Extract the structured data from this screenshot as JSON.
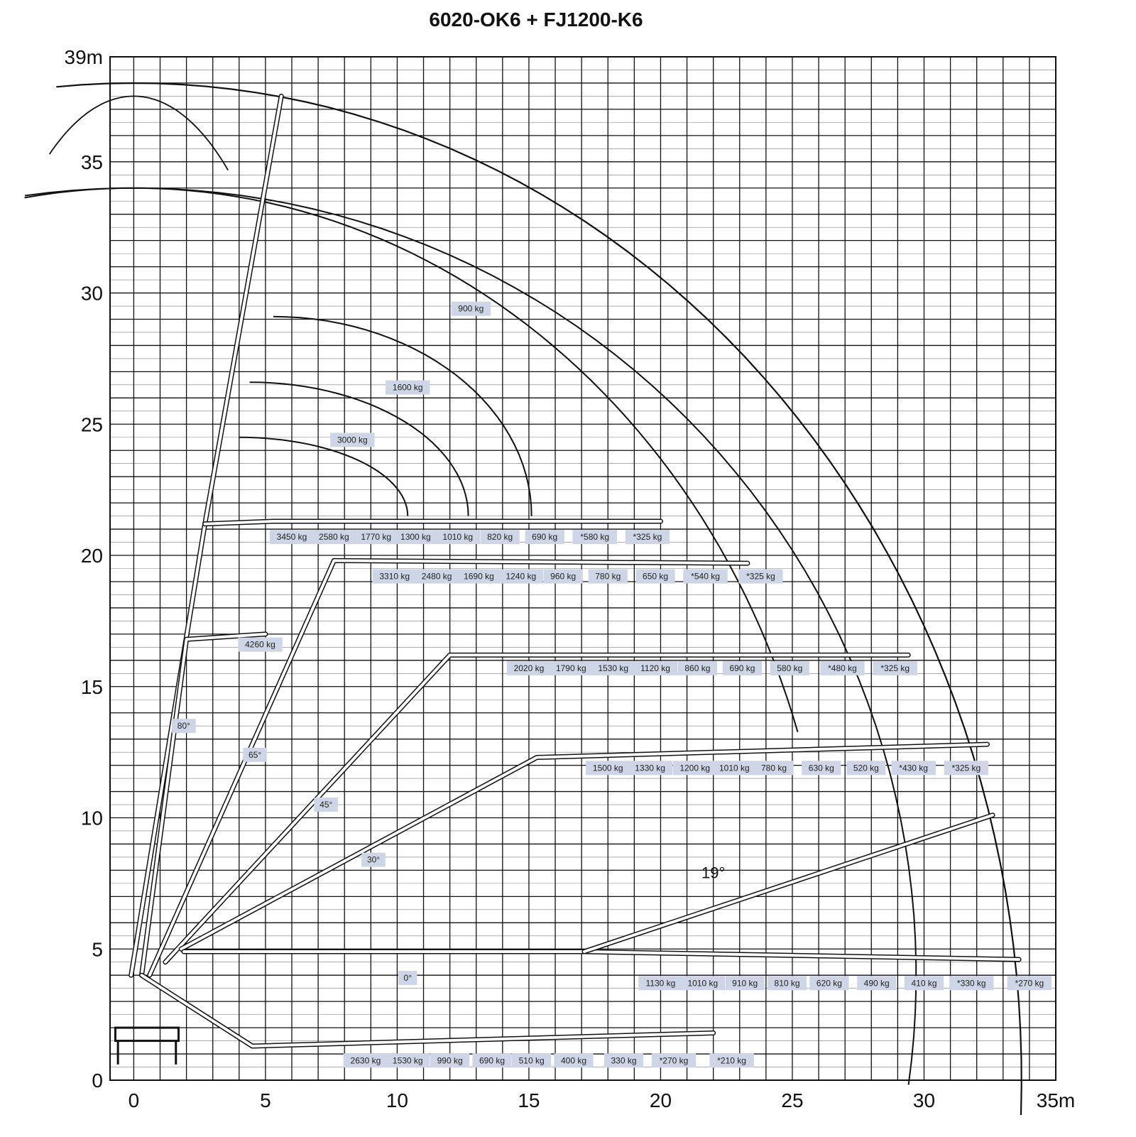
{
  "title": "6020-OK6 + FJ1200-K6",
  "colors": {
    "grid": "#111111",
    "label_box": "#cdd5e6",
    "boom": "#111111"
  },
  "x_ticks": [
    {
      "v": 0,
      "t": "0"
    },
    {
      "v": 5,
      "t": "5"
    },
    {
      "v": 10,
      "t": "10"
    },
    {
      "v": 15,
      "t": "15"
    },
    {
      "v": 20,
      "t": "20"
    },
    {
      "v": 25,
      "t": "25"
    },
    {
      "v": 30,
      "t": "30"
    },
    {
      "v": 35,
      "t": "35m"
    }
  ],
  "y_ticks": [
    {
      "v": 0,
      "t": "0"
    },
    {
      "v": 5,
      "t": "5"
    },
    {
      "v": 10,
      "t": "10"
    },
    {
      "v": 15,
      "t": "15"
    },
    {
      "v": 20,
      "t": "20"
    },
    {
      "v": 25,
      "t": "25"
    },
    {
      "v": 30,
      "t": "30"
    },
    {
      "v": 35,
      "t": "35"
    },
    {
      "v": 39,
      "t": "39m"
    }
  ],
  "chart_data": {
    "type": "load-chart",
    "title": "6020-OK6 + FJ1200-K6",
    "xlim": [
      -0.9,
      35
    ],
    "ylim": [
      0,
      39
    ],
    "grid": true,
    "rows": [
      {
        "y": 20.7,
        "labels": [
          {
            "x": 6.0,
            "t": "3450 kg"
          },
          {
            "x": 7.6,
            "t": "2580 kg"
          },
          {
            "x": 9.2,
            "t": "1770 kg"
          },
          {
            "x": 10.7,
            "t": "1300 kg"
          },
          {
            "x": 12.3,
            "t": "1010 kg"
          },
          {
            "x": 13.9,
            "t": "820 kg"
          },
          {
            "x": 15.6,
            "t": "690 kg"
          },
          {
            "x": 17.5,
            "t": "*580 kg"
          },
          {
            "x": 19.5,
            "t": "*325 kg"
          }
        ]
      },
      {
        "y": 19.2,
        "labels": [
          {
            "x": 9.9,
            "t": "3310 kg"
          },
          {
            "x": 11.5,
            "t": "2480 kg"
          },
          {
            "x": 13.1,
            "t": "1690 kg"
          },
          {
            "x": 14.7,
            "t": "1240 kg"
          },
          {
            "x": 16.3,
            "t": "960 kg"
          },
          {
            "x": 18.0,
            "t": "780 kg"
          },
          {
            "x": 19.8,
            "t": "650 kg"
          },
          {
            "x": 21.7,
            "t": "*540 kg"
          },
          {
            "x": 23.8,
            "t": "*325 kg"
          }
        ]
      },
      {
        "y": 16.6,
        "labels": [
          {
            "x": 4.8,
            "t": "4260 kg"
          }
        ]
      },
      {
        "y": 15.7,
        "labels": [
          {
            "x": 15.0,
            "t": "2020 kg"
          },
          {
            "x": 16.6,
            "t": "1790 kg"
          },
          {
            "x": 18.2,
            "t": "1530 kg"
          },
          {
            "x": 19.8,
            "t": "1120 kg"
          },
          {
            "x": 21.4,
            "t": "860 kg"
          },
          {
            "x": 23.1,
            "t": "690 kg"
          },
          {
            "x": 24.9,
            "t": "580 kg"
          },
          {
            "x": 26.9,
            "t": "*480 kg"
          },
          {
            "x": 28.9,
            "t": "*325 kg"
          }
        ]
      },
      {
        "y": 11.9,
        "labels": [
          {
            "x": 18.0,
            "t": "1500 kg"
          },
          {
            "x": 19.6,
            "t": "1330 kg"
          },
          {
            "x": 21.3,
            "t": "1200 kg"
          },
          {
            "x": 22.8,
            "t": "1010 kg"
          },
          {
            "x": 24.3,
            "t": "780 kg"
          },
          {
            "x": 26.1,
            "t": "630 kg"
          },
          {
            "x": 27.8,
            "t": "520 kg"
          },
          {
            "x": 29.6,
            "t": "*430 kg"
          },
          {
            "x": 31.6,
            "t": "*325 kg"
          }
        ]
      },
      {
        "y": 3.7,
        "labels": [
          {
            "x": 20.0,
            "t": "1130 kg"
          },
          {
            "x": 21.6,
            "t": "1010 kg"
          },
          {
            "x": 23.2,
            "t": "910 kg"
          },
          {
            "x": 24.8,
            "t": "810 kg"
          },
          {
            "x": 26.4,
            "t": "620 kg"
          },
          {
            "x": 28.2,
            "t": "490 kg"
          },
          {
            "x": 30.0,
            "t": "410 kg"
          },
          {
            "x": 31.8,
            "t": "*330 kg"
          },
          {
            "x": 34.0,
            "t": "*270 kg"
          }
        ]
      },
      {
        "y": 0.75,
        "labels": [
          {
            "x": 8.8,
            "t": "2630 kg"
          },
          {
            "x": 10.4,
            "t": "1530 kg"
          },
          {
            "x": 12.0,
            "t": "990 kg"
          },
          {
            "x": 13.6,
            "t": "690 kg"
          },
          {
            "x": 15.1,
            "t": "510 kg"
          },
          {
            "x": 16.7,
            "t": "400 kg"
          },
          {
            "x": 18.6,
            "t": "330 kg"
          },
          {
            "x": 20.5,
            "t": "*270 kg"
          },
          {
            "x": 22.7,
            "t": "*210 kg"
          }
        ]
      }
    ],
    "envelope_labels": [
      {
        "x": 12.8,
        "y": 29.4,
        "t": "900 kg"
      },
      {
        "x": 10.4,
        "y": 26.4,
        "t": "1600 kg"
      },
      {
        "x": 8.3,
        "y": 24.4,
        "t": "3000 kg"
      }
    ],
    "angle_labels": [
      {
        "x": 1.9,
        "y": 13.5,
        "t": "80°"
      },
      {
        "x": 4.6,
        "y": 12.4,
        "t": "65°"
      },
      {
        "x": 7.3,
        "y": 10.5,
        "t": "45°"
      },
      {
        "x": 9.1,
        "y": 8.4,
        "t": "30°"
      },
      {
        "x": 10.4,
        "y": 3.9,
        "t": "0°"
      }
    ],
    "big_angle_label": {
      "x": 22.0,
      "y": 7.7,
      "t": "19°"
    }
  }
}
